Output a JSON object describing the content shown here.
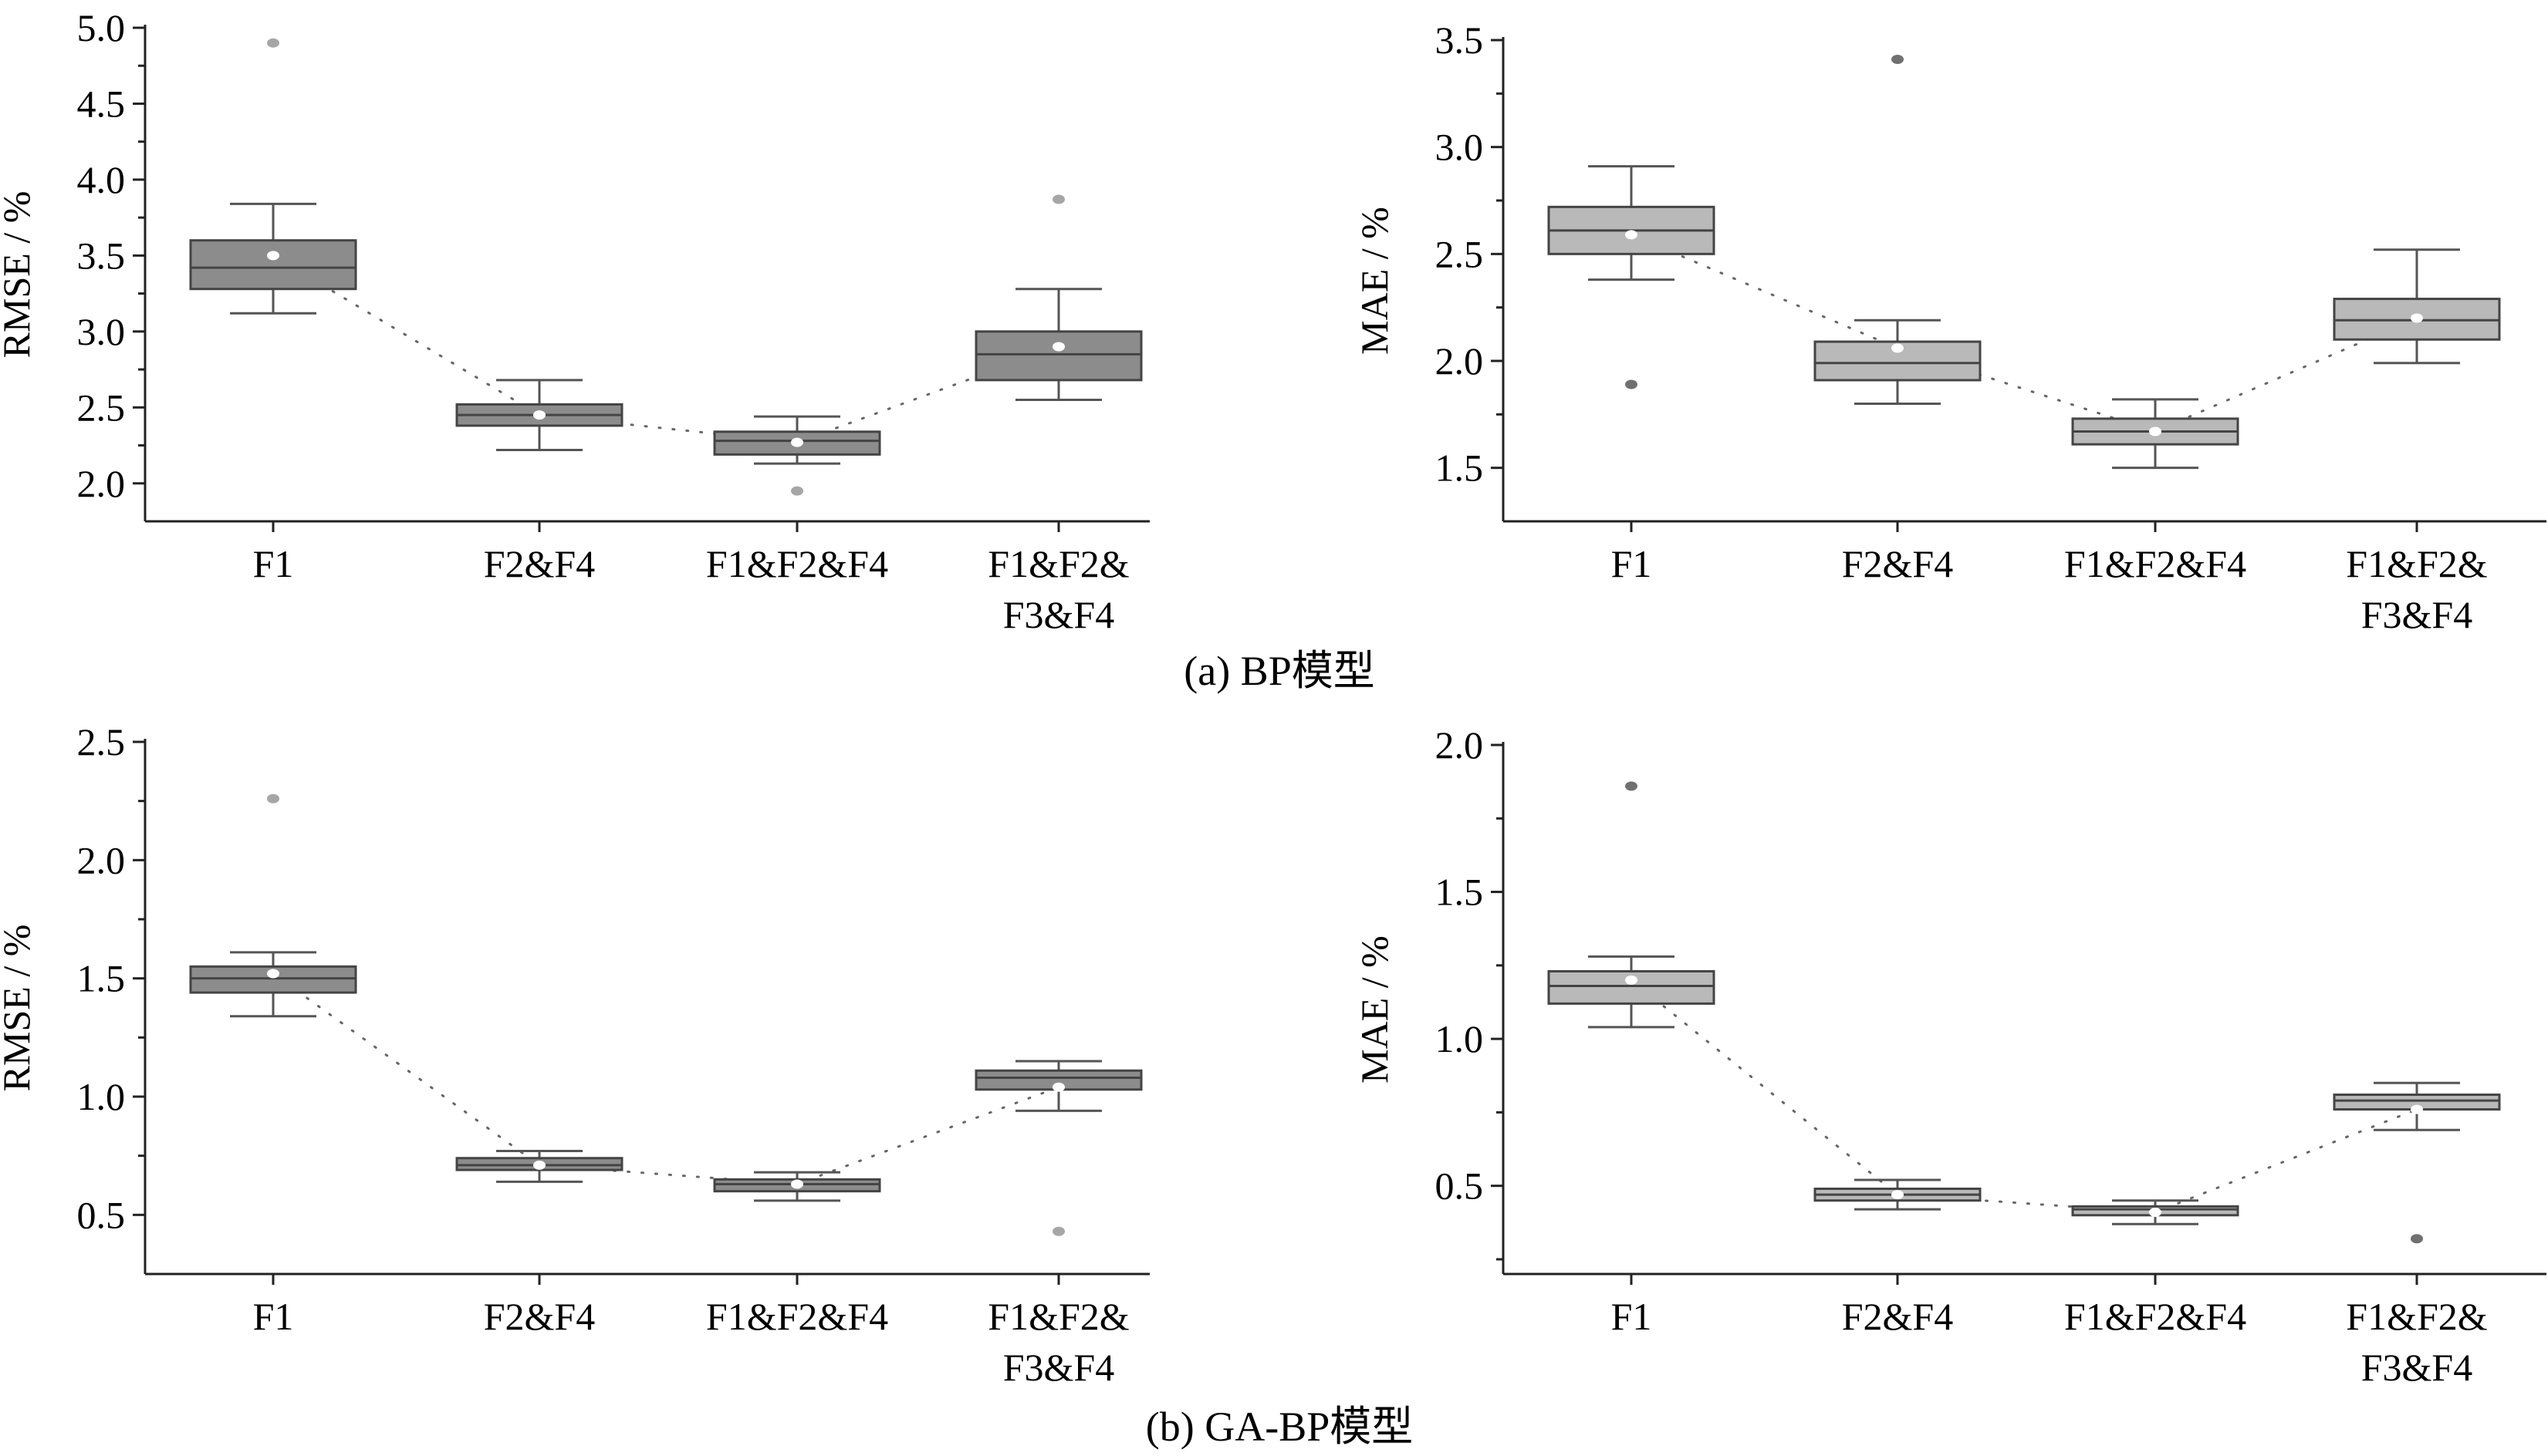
{
  "captions": {
    "a": "(a)  BP模型",
    "b": "(b)  GA-BP模型"
  },
  "colors": {
    "box_dark": "#8c8c8c",
    "box_light": "#b9b9b9",
    "outlier_dark": "#707070",
    "outlier_light": "#a6a6a6",
    "mean_marker": "#ffffff"
  },
  "chart_data": [
    {
      "id": "a-rmse",
      "type": "box",
      "panel": "a",
      "ylabel": "RMSE / %",
      "ylim": [
        1.75,
        5.0
      ],
      "yticks": [
        2.0,
        2.5,
        3.0,
        3.5,
        4.0,
        4.5,
        5.0
      ],
      "tick_decimals": 1,
      "categories": [
        [
          "F1"
        ],
        [
          "F2&F4"
        ],
        [
          "F1&F2&F4"
        ],
        [
          "F1&F2&",
          "F3&F4"
        ]
      ],
      "box_color": "dark",
      "outlier_color": "light",
      "boxes": [
        {
          "whisker_low": 3.12,
          "q1": 3.28,
          "median": 3.42,
          "q3": 3.6,
          "whisker_high": 3.84,
          "mean": 3.5,
          "outliers": [
            4.9
          ]
        },
        {
          "whisker_low": 2.22,
          "q1": 2.38,
          "median": 2.45,
          "q3": 2.52,
          "whisker_high": 2.68,
          "mean": 2.45,
          "outliers": []
        },
        {
          "whisker_low": 2.13,
          "q1": 2.19,
          "median": 2.28,
          "q3": 2.34,
          "whisker_high": 2.44,
          "mean": 2.27,
          "outliers": [
            1.95
          ]
        },
        {
          "whisker_low": 2.55,
          "q1": 2.68,
          "median": 2.85,
          "q3": 3.0,
          "whisker_high": 3.28,
          "mean": 2.9,
          "outliers": [
            3.87
          ]
        }
      ]
    },
    {
      "id": "a-mae",
      "type": "box",
      "panel": "a",
      "ylabel": "MAE / %",
      "ylim": [
        1.25,
        3.5
      ],
      "yticks": [
        1.5,
        2.0,
        2.5,
        3.0,
        3.5
      ],
      "tick_decimals": 1,
      "categories": [
        [
          "F1"
        ],
        [
          "F2&F4"
        ],
        [
          "F1&F2&F4"
        ],
        [
          "F1&F2&",
          "F3&F4"
        ]
      ],
      "box_color": "light",
      "outlier_color": "dark",
      "boxes": [
        {
          "whisker_low": 2.38,
          "q1": 2.5,
          "median": 2.61,
          "q3": 2.72,
          "whisker_high": 2.91,
          "mean": 2.59,
          "outliers": [
            1.89
          ]
        },
        {
          "whisker_low": 1.8,
          "q1": 1.91,
          "median": 1.99,
          "q3": 2.09,
          "whisker_high": 2.19,
          "mean": 2.06,
          "outliers": [
            3.41
          ]
        },
        {
          "whisker_low": 1.5,
          "q1": 1.61,
          "median": 1.67,
          "q3": 1.73,
          "whisker_high": 1.82,
          "mean": 1.67,
          "outliers": []
        },
        {
          "whisker_low": 1.99,
          "q1": 2.1,
          "median": 2.19,
          "q3": 2.29,
          "whisker_high": 2.52,
          "mean": 2.2,
          "outliers": []
        }
      ]
    },
    {
      "id": "b-rmse",
      "type": "box",
      "panel": "b",
      "ylabel": "RMSE / %",
      "ylim": [
        0.25,
        2.5
      ],
      "yticks": [
        0.5,
        1.0,
        1.5,
        2.0,
        2.5
      ],
      "tick_decimals": 1,
      "categories": [
        [
          "F1"
        ],
        [
          "F2&F4"
        ],
        [
          "F1&F2&F4"
        ],
        [
          "F1&F2&",
          "F3&F4"
        ]
      ],
      "box_color": "dark",
      "outlier_color": "light",
      "boxes": [
        {
          "whisker_low": 1.34,
          "q1": 1.44,
          "median": 1.5,
          "q3": 1.55,
          "whisker_high": 1.61,
          "mean": 1.52,
          "outliers": [
            2.26
          ]
        },
        {
          "whisker_low": 0.64,
          "q1": 0.69,
          "median": 0.71,
          "q3": 0.74,
          "whisker_high": 0.77,
          "mean": 0.71,
          "outliers": []
        },
        {
          "whisker_low": 0.56,
          "q1": 0.6,
          "median": 0.63,
          "q3": 0.65,
          "whisker_high": 0.68,
          "mean": 0.63,
          "outliers": []
        },
        {
          "whisker_low": 0.94,
          "q1": 1.03,
          "median": 1.08,
          "q3": 1.11,
          "whisker_high": 1.15,
          "mean": 1.04,
          "outliers": [
            0.43
          ]
        }
      ]
    },
    {
      "id": "b-mae",
      "type": "box",
      "panel": "b",
      "ylabel": "MAE / %",
      "ylim": [
        0.2,
        2.0
      ],
      "yticks": [
        0.5,
        1.0,
        1.5,
        2.0
      ],
      "tick_decimals": 1,
      "categories": [
        [
          "F1"
        ],
        [
          "F2&F4"
        ],
        [
          "F1&F2&F4"
        ],
        [
          "F1&F2&",
          "F3&F4"
        ]
      ],
      "box_color": "light",
      "outlier_color": "dark",
      "boxes": [
        {
          "whisker_low": 1.04,
          "q1": 1.12,
          "median": 1.18,
          "q3": 1.23,
          "whisker_high": 1.28,
          "mean": 1.2,
          "outliers": [
            1.86
          ]
        },
        {
          "whisker_low": 0.42,
          "q1": 0.45,
          "median": 0.47,
          "q3": 0.49,
          "whisker_high": 0.52,
          "mean": 0.47,
          "outliers": []
        },
        {
          "whisker_low": 0.37,
          "q1": 0.4,
          "median": 0.42,
          "q3": 0.43,
          "whisker_high": 0.45,
          "mean": 0.41,
          "outliers": []
        },
        {
          "whisker_low": 0.69,
          "q1": 0.76,
          "median": 0.79,
          "q3": 0.81,
          "whisker_high": 0.85,
          "mean": 0.76,
          "outliers": [
            0.32
          ]
        }
      ]
    }
  ]
}
